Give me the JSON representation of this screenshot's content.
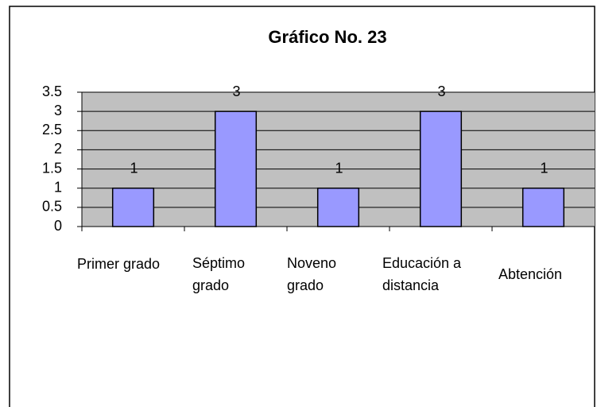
{
  "chart_data": {
    "type": "bar",
    "title": "Gráfico No. 23",
    "categories": [
      "Primer grado",
      "Séptimo grado",
      "Noveno grado",
      "Educación a distancia",
      "Abtención"
    ],
    "values": [
      1,
      3,
      1,
      3,
      1
    ],
    "color": "#9999ff",
    "background": "#c0c0c0",
    "ylim": [
      0,
      3.5
    ],
    "yticks": [
      0,
      0.5,
      1,
      1.5,
      2,
      2.5,
      3,
      3.5
    ],
    "grid": true
  }
}
